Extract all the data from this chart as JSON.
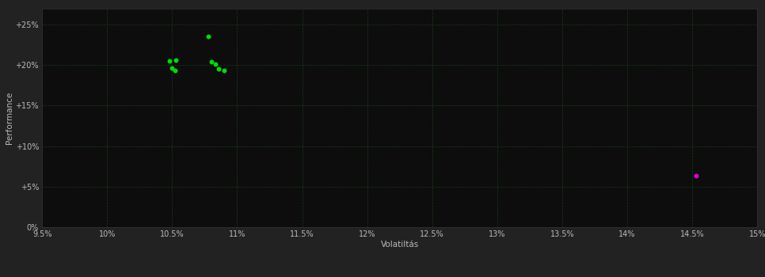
{
  "background_color": "#222222",
  "plot_bg_color": "#0d0d0d",
  "grid_color": "#1a3a1a",
  "text_color": "#bbbbbb",
  "xlabel": "Volatiltás",
  "ylabel": "Performance",
  "xlim": [
    0.095,
    0.15
  ],
  "ylim": [
    0.0,
    0.27
  ],
  "xticks": [
    0.095,
    0.1,
    0.105,
    0.11,
    0.115,
    0.12,
    0.125,
    0.13,
    0.135,
    0.14,
    0.145,
    0.15
  ],
  "yticks": [
    0.0,
    0.05,
    0.1,
    0.15,
    0.2,
    0.25
  ],
  "ytick_labels": [
    "0%",
    "+5%",
    "+10%",
    "+15%",
    "+20%",
    "+25%"
  ],
  "xtick_labels": [
    "9.5%",
    "10%",
    "10.5%",
    "11%",
    "11.5%",
    "12%",
    "12.5%",
    "13%",
    "13.5%",
    "14%",
    "14.5%",
    "15%"
  ],
  "green_points": [
    [
      0.1048,
      0.205
    ],
    [
      0.105,
      0.196
    ],
    [
      0.1052,
      0.193
    ],
    [
      0.1053,
      0.206
    ],
    [
      0.1078,
      0.235
    ],
    [
      0.108,
      0.204
    ],
    [
      0.1083,
      0.201
    ],
    [
      0.1086,
      0.195
    ],
    [
      0.109,
      0.1935
    ]
  ],
  "magenta_points": [
    [
      0.1453,
      0.063
    ]
  ],
  "green_color": "#00dd00",
  "magenta_color": "#dd00dd",
  "point_size": 18
}
